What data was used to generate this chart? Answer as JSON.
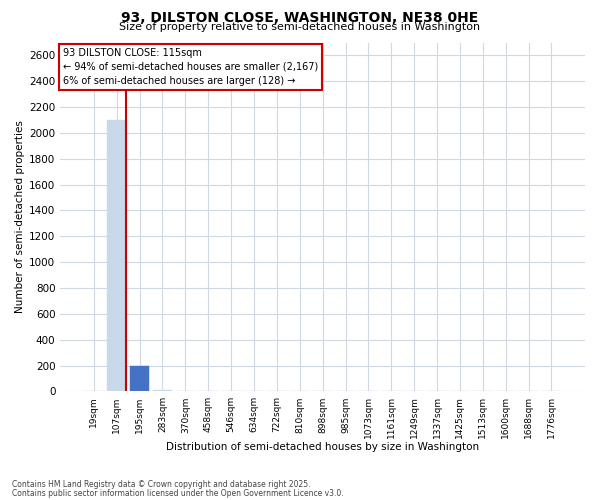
{
  "title": "93, DILSTON CLOSE, WASHINGTON, NE38 0HE",
  "subtitle": "Size of property relative to semi-detached houses in Washington",
  "xlabel": "Distribution of semi-detached houses by size in Washington",
  "ylabel": "Number of semi-detached properties",
  "categories": [
    "19sqm",
    "107sqm",
    "195sqm",
    "283sqm",
    "370sqm",
    "458sqm",
    "546sqm",
    "634sqm",
    "722sqm",
    "810sqm",
    "898sqm",
    "985sqm",
    "1073sqm",
    "1161sqm",
    "1249sqm",
    "1337sqm",
    "1425sqm",
    "1513sqm",
    "1600sqm",
    "1688sqm",
    "1776sqm"
  ],
  "values": [
    2,
    2100,
    195,
    8,
    4,
    2,
    1,
    1,
    1,
    1,
    1,
    1,
    1,
    1,
    1,
    1,
    1,
    1,
    1,
    1,
    1
  ],
  "bar_colors": [
    "#c8d9ea",
    "#c8d9ea",
    "#4472c4",
    "#c8d9ea",
    "#c8d9ea",
    "#c8d9ea",
    "#c8d9ea",
    "#c8d9ea",
    "#c8d9ea",
    "#c8d9ea",
    "#c8d9ea",
    "#c8d9ea",
    "#c8d9ea",
    "#c8d9ea",
    "#c8d9ea",
    "#c8d9ea",
    "#c8d9ea",
    "#c8d9ea",
    "#c8d9ea",
    "#c8d9ea",
    "#c8d9ea"
  ],
  "subject_bar_index": 2,
  "ylim": [
    0,
    2700
  ],
  "yticks": [
    0,
    200,
    400,
    600,
    800,
    1000,
    1200,
    1400,
    1600,
    1800,
    2000,
    2200,
    2400,
    2600
  ],
  "annotation_title": "93 DILSTON CLOSE: 115sqm",
  "annotation_line1": "← 94% of semi-detached houses are smaller (2,167)",
  "annotation_line2": "6% of semi-detached houses are larger (128) →",
  "annotation_box_edgecolor": "#cc0000",
  "grid_color": "#d0d8e4",
  "background_color": "#ffffff",
  "footer_line1": "Contains HM Land Registry data © Crown copyright and database right 2025.",
  "footer_line2": "Contains public sector information licensed under the Open Government Licence v3.0.",
  "vline_color": "#cc0000",
  "vline_index": 1
}
